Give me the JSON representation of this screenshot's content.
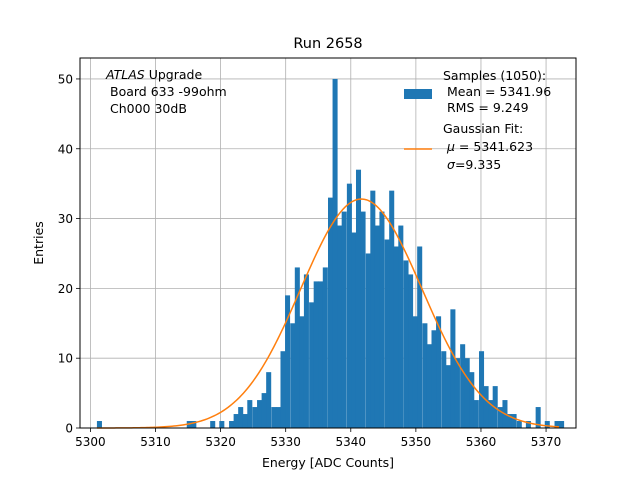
{
  "chart_data": {
    "type": "bar",
    "title": "Run 2658",
    "xlabel": "Energy [ADC Counts]",
    "ylabel": "Entries",
    "xlim": [
      5298.4,
      5374.6
    ],
    "ylim": [
      0,
      53
    ],
    "grid": true,
    "bin_width": 0.72,
    "x_ticks": [
      5300,
      5310,
      5320,
      5330,
      5340,
      5350,
      5360,
      5370
    ],
    "y_ticks": [
      0,
      10,
      20,
      30,
      40,
      50
    ],
    "hist_color": "#1f77b4",
    "fit_color": "#ff7f0e",
    "annotation": {
      "italic_part": "ATLAS",
      "line1_rest": " Upgrade",
      "line2": "Board 633 -99ohm",
      "line3": "Ch000 30dB"
    },
    "legend": {
      "position": "upper right",
      "samples": [
        "Samples (1050):",
        "Mean = 5341.96",
        "RMS = 9.249"
      ],
      "fit_title": "Gaussian Fit:",
      "fit_mu_symbol": "μ",
      "fit_mu_value": " = 5341.623",
      "fit_sigma_symbol": "σ",
      "fit_sigma_value": "=9.335"
    },
    "histogram": {
      "x_left": [
        5301.0,
        5314.8,
        5315.5,
        5318.4,
        5319.8,
        5321.3,
        5322.0,
        5322.7,
        5323.4,
        5324.1,
        5324.9,
        5325.6,
        5326.3,
        5327.0,
        5327.8,
        5328.5,
        5329.2,
        5329.9,
        5330.7,
        5331.4,
        5332.1,
        5332.8,
        5333.6,
        5334.3,
        5335.0,
        5335.7,
        5336.5,
        5337.2,
        5337.9,
        5338.6,
        5339.4,
        5340.1,
        5340.8,
        5341.5,
        5342.3,
        5343.0,
        5343.7,
        5344.4,
        5345.2,
        5345.9,
        5346.6,
        5347.3,
        5348.1,
        5348.8,
        5349.5,
        5350.2,
        5351.0,
        5351.7,
        5352.4,
        5353.1,
        5353.9,
        5354.6,
        5355.3,
        5356.0,
        5356.8,
        5357.5,
        5358.2,
        5358.9,
        5359.7,
        5360.4,
        5361.1,
        5361.8,
        5362.6,
        5363.3,
        5364.0,
        5364.7,
        5365.5,
        5366.9,
        5368.4,
        5369.8,
        5371.3,
        5372.0
      ],
      "counts": [
        1,
        1,
        1,
        1,
        1,
        1,
        2,
        3,
        2,
        4,
        3,
        4,
        5,
        8,
        3,
        3,
        11,
        19,
        15,
        23,
        16,
        22,
        18,
        21,
        21,
        23,
        33,
        50,
        29,
        31,
        35,
        28,
        37,
        31,
        25,
        34,
        29,
        31,
        27,
        34,
        26,
        29,
        24,
        22,
        16,
        26,
        15,
        12,
        14,
        16,
        11,
        9,
        17,
        10,
        12,
        10,
        8,
        4,
        11,
        6,
        4,
        6,
        3,
        4,
        2,
        2,
        1,
        1,
        3,
        1,
        1,
        1
      ]
    },
    "gaussian_fit": {
      "mu": 5341.623,
      "sigma": 9.335,
      "amplitude": 32.8,
      "x_range": [
        5301,
        5372
      ]
    }
  }
}
